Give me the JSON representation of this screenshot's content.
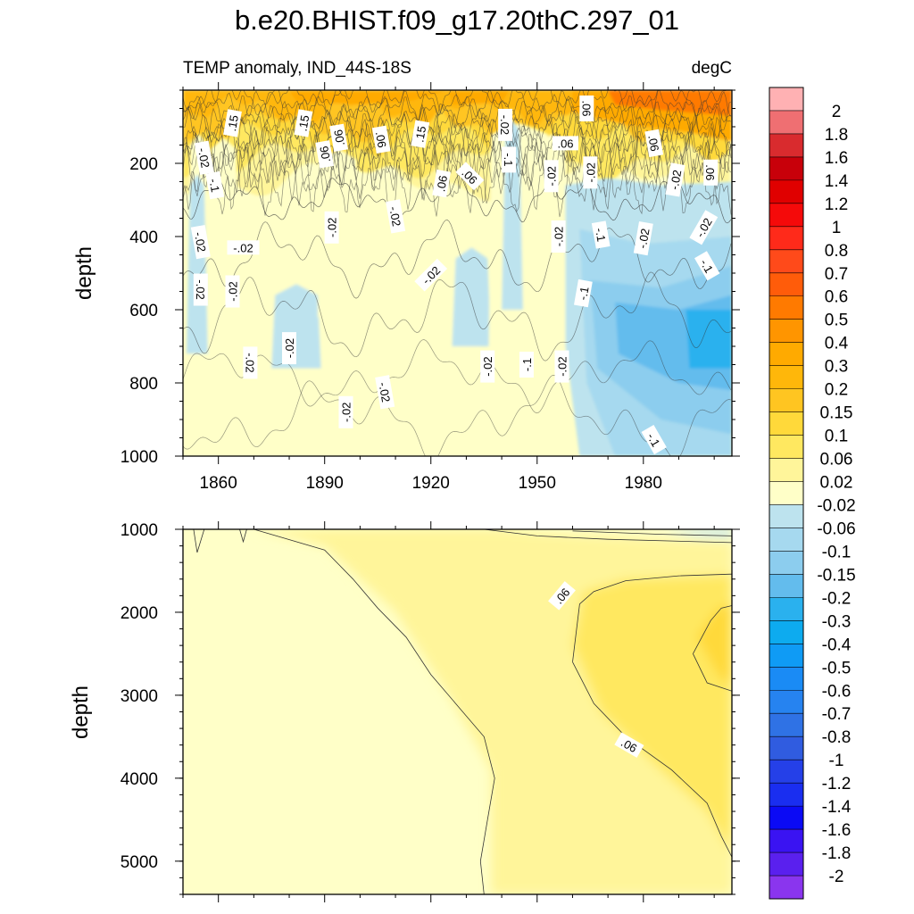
{
  "chart_data": {
    "type": "contour",
    "title": "b.e20.BHIST.f09_g17.20thC.297_01",
    "left_subtitle": "TEMP anomaly, IND_44S-18S",
    "right_subtitle": "degC",
    "time_range": [
      1850,
      2005
    ],
    "panels": [
      {
        "name": "upper",
        "ylabel": "depth",
        "ylim": [
          0,
          1000
        ],
        "y_reversed": true,
        "yticks": [
          "200",
          "400",
          "600",
          "800",
          "1000"
        ],
        "xticks": [
          "1860",
          "1890",
          "1920",
          "1950",
          "1980"
        ],
        "labels_visible": true
      },
      {
        "name": "lower",
        "ylabel": "depth",
        "ylim": [
          1000,
          5400
        ],
        "y_reversed": true,
        "yticks": [
          "1000",
          "2000",
          "3000",
          "4000",
          "5000"
        ],
        "xticks": [
          "1860",
          "1890",
          "1920",
          "1950",
          "1980"
        ],
        "labels_visible": false
      }
    ],
    "colorbar": {
      "labels": [
        "2",
        "1.8",
        "1.6",
        "1.4",
        "1.2",
        "1",
        "0.8",
        "0.7",
        "0.6",
        "0.5",
        "0.4",
        "0.3",
        "0.2",
        "0.15",
        "0.1",
        "0.06",
        "0.02",
        "-0.02",
        "-0.06",
        "-0.1",
        "-0.15",
        "-0.2",
        "-0.3",
        "-0.4",
        "-0.5",
        "-0.6",
        "-0.7",
        "-0.8",
        "-1",
        "-1.2",
        "-1.4",
        "-1.6",
        "-1.8",
        "-2"
      ],
      "colors": [
        "#ffb1b3",
        "#ef6f72",
        "#d92b2e",
        "#c8000a",
        "#e00000",
        "#f50a0a",
        "#ff2a1a",
        "#ff4a1a",
        "#ff5c0a",
        "#ff7a00",
        "#ff9500",
        "#ffaa00",
        "#ffb70a",
        "#ffc521",
        "#ffd93a",
        "#ffe860",
        "#fff59a",
        "#ffffc8",
        "#bde3ee",
        "#a6d9ef",
        "#8ccdee",
        "#63bced",
        "#2ab1ee",
        "#0dabef",
        "#0f9bf5",
        "#1a8bf5",
        "#2683f0",
        "#2f72e5",
        "#305ce0",
        "#2540e8",
        "#1a2ef0",
        "#0b0af5",
        "#3a13f2",
        "#5a20ee",
        "#8a35ee"
      ]
    },
    "contour_labels_upper": [
      {
        "text": ".15",
        "year": 1864,
        "depth": 90,
        "rot": -80
      },
      {
        "text": ".15",
        "year": 1884,
        "depth": 90,
        "rot": -80
      },
      {
        "text": ".06",
        "year": 1890,
        "depth": 175,
        "rot": -100
      },
      {
        "text": ".06",
        "year": 1894,
        "depth": 130,
        "rot": -100
      },
      {
        "text": ".06",
        "year": 1906,
        "depth": 135,
        "rot": 80
      },
      {
        "text": ".15",
        "year": 1917,
        "depth": 120,
        "rot": -80
      },
      {
        "text": ".06",
        "year": 1923,
        "depth": 255,
        "rot": -80
      },
      {
        "text": ".06",
        "year": 1931,
        "depth": 235,
        "rot": 45
      },
      {
        "text": "-.02",
        "year": 1941,
        "depth": 95,
        "rot": 90
      },
      {
        "text": "-.1",
        "year": 1942,
        "depth": 190,
        "rot": 90
      },
      {
        "text": ".06",
        "year": 1958,
        "depth": 145,
        "rot": 0
      },
      {
        "text": ".06",
        "year": 1964,
        "depth": 50,
        "rot": 90
      },
      {
        "text": "-.02",
        "year": 1954,
        "depth": 235,
        "rot": -90
      },
      {
        "text": "-.02",
        "year": 1965,
        "depth": 225,
        "rot": -90
      },
      {
        "text": ".06",
        "year": 1983,
        "depth": 145,
        "rot": 80
      },
      {
        "text": "-.02",
        "year": 1989,
        "depth": 245,
        "rot": -80
      },
      {
        "text": ".06",
        "year": 1999,
        "depth": 225,
        "rot": 90
      },
      {
        "text": "-.02",
        "year": 1856,
        "depth": 185,
        "rot": 80
      },
      {
        "text": "-.1",
        "year": 1859,
        "depth": 260,
        "rot": 80
      },
      {
        "text": "-.02",
        "year": 1855,
        "depth": 415,
        "rot": 80
      },
      {
        "text": "-.02",
        "year": 1867,
        "depth": 430,
        "rot": 0
      },
      {
        "text": "-.02",
        "year": 1855,
        "depth": 545,
        "rot": 90
      },
      {
        "text": "-.02",
        "year": 1864,
        "depth": 550,
        "rot": -90
      },
      {
        "text": "-.02",
        "year": 1892,
        "depth": 375,
        "rot": -90
      },
      {
        "text": "-.02",
        "year": 1910,
        "depth": 345,
        "rot": 80
      },
      {
        "text": "-.02",
        "year": 1920,
        "depth": 505,
        "rot": -45
      },
      {
        "text": "-.02",
        "year": 1956,
        "depth": 400,
        "rot": -90
      },
      {
        "text": "-.1",
        "year": 1963,
        "depth": 555,
        "rot": -80
      },
      {
        "text": "-.1",
        "year": 1968,
        "depth": 395,
        "rot": 80
      },
      {
        "text": "-.02",
        "year": 1980,
        "depth": 405,
        "rot": -80
      },
      {
        "text": "-.02",
        "year": 1997,
        "depth": 375,
        "rot": -60
      },
      {
        "text": "-.1",
        "year": 1998,
        "depth": 480,
        "rot": 60
      },
      {
        "text": "-.02",
        "year": 1880,
        "depth": 705,
        "rot": -90
      },
      {
        "text": "-.02",
        "year": 1869,
        "depth": 745,
        "rot": 90
      },
      {
        "text": "-.02",
        "year": 1896,
        "depth": 880,
        "rot": -90
      },
      {
        "text": "-.02",
        "year": 1907,
        "depth": 825,
        "rot": 80
      },
      {
        "text": "-.02",
        "year": 1936,
        "depth": 755,
        "rot": -90
      },
      {
        "text": "-.1",
        "year": 1947,
        "depth": 750,
        "rot": -90
      },
      {
        "text": "-.02",
        "year": 1957,
        "depth": 755,
        "rot": -90
      },
      {
        "text": "-.1",
        "year": 1983,
        "depth": 955,
        "rot": 60
      }
    ],
    "contour_labels_lower": [
      {
        "text": ".06",
        "year": 1957,
        "depth": 1800,
        "rot": -50
      },
      {
        "text": ".06",
        "year": 1976,
        "depth": 3600,
        "rot": 30
      }
    ]
  }
}
